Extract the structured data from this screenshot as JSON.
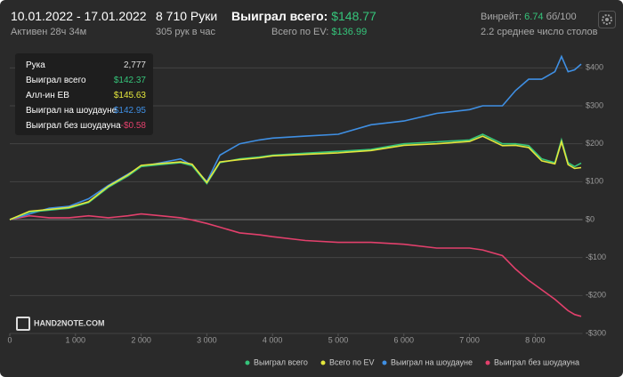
{
  "header": {
    "period": "10.01.2022 - 17.01.2022",
    "active": "Активен 28ч 34м",
    "hands": "8 710 Руки",
    "rate": "305 рук в час",
    "won_label": "Выиграл всего:",
    "won_value": "$148.77",
    "ev_label": "Всего по EV:",
    "ev_value": "$136.99",
    "winrate_label": "Винрейт:",
    "winrate_value": "6.74",
    "winrate_unit": "бб/100",
    "tables": "2.2 среднее число столов"
  },
  "tooltip": {
    "rows": [
      [
        "Рука",
        "2,777"
      ],
      [
        "Выиграл всего",
        "$142.37"
      ],
      [
        "Алл-ин EB",
        "$145.63"
      ],
      [
        "Выиграл на шоудауне",
        "$142.95"
      ],
      [
        "Выиграл без шоудауна",
        "-$0.58"
      ]
    ]
  },
  "logo": "HAND2NOTE.COM",
  "chart_data": {
    "type": "line",
    "x": [
      0,
      300,
      600,
      900,
      1200,
      1500,
      1800,
      2000,
      2300,
      2600,
      2777,
      3000,
      3200,
      3500,
      3800,
      4000,
      4500,
      5000,
      5500,
      6000,
      6500,
      7000,
      7200,
      7500,
      7700,
      7900,
      8100,
      8300,
      8400,
      8500,
      8600,
      8700
    ],
    "series": [
      {
        "name": "Выиграл всего",
        "color": "#35c47a",
        "values": [
          0,
          20,
          25,
          30,
          45,
          85,
          115,
          140,
          145,
          150,
          142,
          95,
          150,
          160,
          165,
          170,
          175,
          180,
          185,
          200,
          205,
          210,
          225,
          200,
          200,
          195,
          160,
          150,
          210,
          150,
          140,
          149
        ]
      },
      {
        "name": "Всего по EV",
        "color": "#e3e63c",
        "values": [
          0,
          22,
          27,
          32,
          47,
          88,
          118,
          143,
          148,
          152,
          146,
          98,
          152,
          158,
          163,
          168,
          172,
          176,
          182,
          196,
          200,
          206,
          220,
          195,
          196,
          190,
          155,
          147,
          205,
          145,
          135,
          137
        ]
      },
      {
        "name": "Выиграл на шоудауне",
        "color": "#3f8fe3",
        "values": [
          0,
          15,
          30,
          35,
          55,
          90,
          120,
          140,
          150,
          160,
          143,
          100,
          170,
          200,
          210,
          215,
          220,
          225,
          250,
          260,
          280,
          290,
          300,
          300,
          340,
          370,
          370,
          390,
          430,
          390,
          395,
          410
        ]
      },
      {
        "name": "Выиграл без шоудауна",
        "color": "#e2406c",
        "values": [
          0,
          10,
          5,
          5,
          10,
          5,
          10,
          15,
          10,
          5,
          -1,
          -10,
          -20,
          -35,
          -40,
          -45,
          -55,
          -60,
          -60,
          -65,
          -75,
          -75,
          -80,
          -95,
          -130,
          -160,
          -185,
          -210,
          -225,
          -240,
          -250,
          -255
        ]
      }
    ],
    "xlim": [
      0,
      8720
    ],
    "xticks": [
      0,
      {
        "value": 1000,
        "label": "1 000"
      },
      {
        "value": 2000,
        "label": "2 000"
      },
      {
        "value": 3000,
        "label": "3 000"
      },
      {
        "value": 4000,
        "label": "4 000"
      },
      {
        "value": 5000,
        "label": "5 000"
      },
      {
        "value": 6000,
        "label": "6 000"
      },
      {
        "value": 7000,
        "label": "7 000"
      },
      {
        "value": 8000,
        "label": "8 000"
      }
    ],
    "ylim": [
      -300,
      450
    ],
    "yticks": [
      {
        "value": -300,
        "label": "-$300"
      },
      {
        "value": -200,
        "label": "-$200"
      },
      {
        "value": -100,
        "label": "-$100"
      },
      {
        "value": 0,
        "label": "$0"
      },
      {
        "value": 100,
        "label": "$100"
      },
      {
        "value": 200,
        "label": "$200"
      },
      {
        "value": 300,
        "label": "$300"
      },
      {
        "value": 400,
        "label": "$400"
      }
    ],
    "grid": true
  }
}
